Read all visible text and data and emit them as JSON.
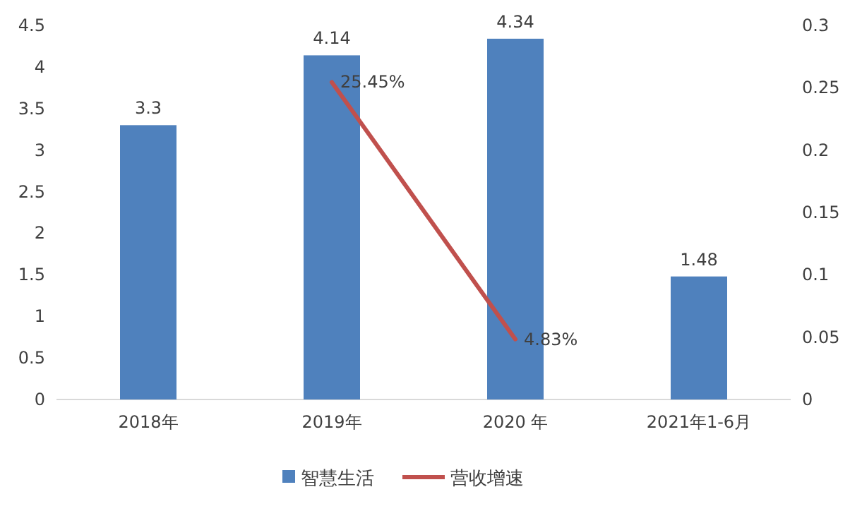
{
  "chart_data": {
    "type": "bar",
    "categories": [
      "2018年",
      "2019年",
      "2020 年",
      "2021年1-6月"
    ],
    "series": [
      {
        "name": "智慧生活",
        "color": "#4f81bd",
        "values": [
          3.3,
          4.14,
          4.34,
          1.48
        ],
        "value_labels": [
          "3.3",
          "4.14",
          "4.34",
          "1.48"
        ]
      },
      {
        "name": "营收增速",
        "type": "line",
        "axis": "y2",
        "color": "#c0504d",
        "values": [
          null,
          0.2545,
          0.0483,
          null
        ],
        "value_labels": [
          null,
          "25.45%",
          "4.83%",
          null
        ]
      }
    ],
    "ylim": [
      0,
      4.5
    ],
    "yticks": [
      0,
      0.5,
      1,
      1.5,
      2,
      2.5,
      3,
      3.5,
      4,
      4.5
    ],
    "y2lim": [
      0,
      0.3
    ],
    "y2ticks": [
      0,
      0.05,
      0.1,
      0.15,
      0.2,
      0.25,
      0.3
    ],
    "legend": "bottom"
  }
}
